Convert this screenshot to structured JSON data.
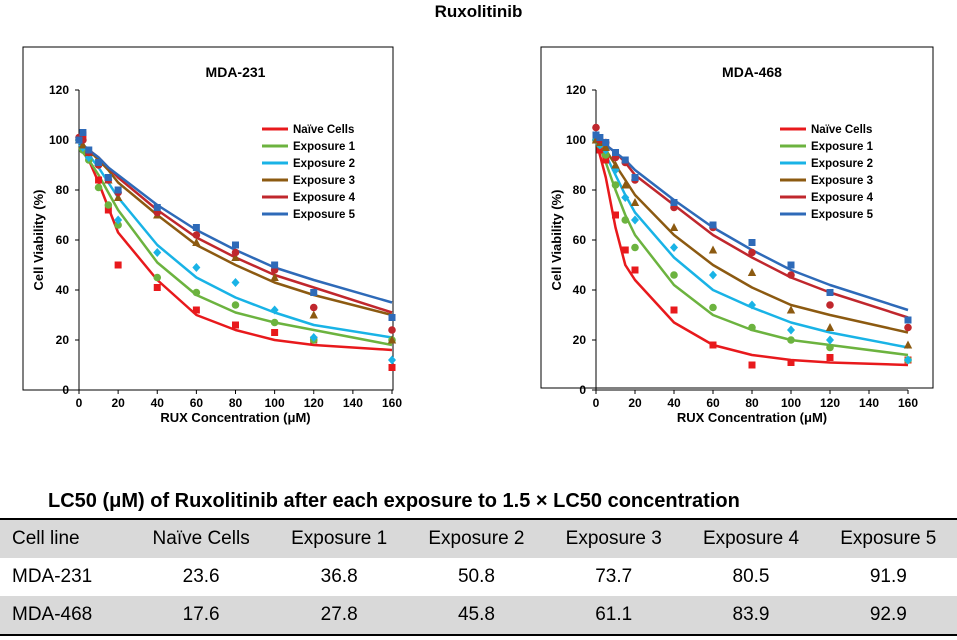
{
  "page_title": "Ruxolitinib",
  "series_colors": [
    "#e8191c",
    "#6cb33f",
    "#19b3e6",
    "#8c5a11",
    "#c0272d",
    "#2e6ab8"
  ],
  "chart_data": [
    {
      "type": "scatter",
      "title": "MDA-231",
      "xlabel": "RUX Concentration (μM)",
      "ylabel": "Cell Viability (%)",
      "xlim": [
        0,
        160
      ],
      "ylim": [
        0,
        120
      ],
      "xticks": [
        "0",
        "20",
        "40",
        "60",
        "80",
        "100",
        "120",
        "140",
        "160"
      ],
      "yticks": [
        "0",
        "20",
        "40",
        "60",
        "80",
        "100",
        "120"
      ],
      "legend": "top-right",
      "series": [
        {
          "name": "Naïve Cells",
          "marker": "square",
          "x": [
            0,
            2,
            5,
            10,
            15,
            20,
            40,
            60,
            80,
            100,
            120,
            160
          ],
          "y": [
            100,
            102,
            94,
            84,
            72,
            50,
            41,
            32,
            26,
            23,
            20,
            9
          ],
          "fit": [
            100,
            97,
            92,
            83,
            73,
            63,
            44,
            30,
            24,
            20,
            18,
            16
          ]
        },
        {
          "name": "Exposure 1",
          "marker": "circle",
          "x": [
            0,
            2,
            5,
            10,
            15,
            20,
            40,
            60,
            80,
            100,
            120,
            160
          ],
          "y": [
            100,
            96,
            92,
            81,
            74,
            66,
            45,
            39,
            34,
            27,
            20,
            20
          ],
          "fit": [
            97,
            95,
            92,
            86,
            79,
            72,
            51,
            38,
            31,
            27,
            24,
            18
          ]
        },
        {
          "name": "Exposure 2",
          "marker": "diamond",
          "x": [
            0,
            2,
            5,
            10,
            15,
            20,
            40,
            60,
            80,
            100,
            120,
            160
          ],
          "y": [
            100,
            97,
            93,
            90,
            84,
            68,
            55,
            49,
            43,
            32,
            21,
            12
          ],
          "fit": [
            98,
            97,
            94,
            89,
            83,
            77,
            58,
            45,
            37,
            31,
            26,
            21
          ]
        },
        {
          "name": "Exposure 3",
          "marker": "triangle",
          "x": [
            0,
            2,
            5,
            10,
            15,
            20,
            40,
            60,
            80,
            100,
            120,
            160
          ],
          "y": [
            100,
            98,
            95,
            91,
            84,
            77,
            70,
            59,
            53,
            45,
            30,
            20
          ],
          "fit": [
            99,
            98,
            96,
            92,
            88,
            83,
            70,
            58,
            50,
            43,
            38,
            30
          ]
        },
        {
          "name": "Exposure 4",
          "marker": "circle",
          "x": [
            0,
            2,
            5,
            10,
            15,
            20,
            40,
            60,
            80,
            100,
            120,
            160
          ],
          "y": [
            101,
            100,
            95,
            90,
            84,
            79,
            71,
            62,
            55,
            48,
            33,
            24
          ],
          "fit": [
            99,
            98,
            96,
            93,
            89,
            85,
            72,
            61,
            53,
            46,
            41,
            31
          ]
        },
        {
          "name": "Exposure 5",
          "marker": "square",
          "x": [
            0,
            2,
            5,
            10,
            15,
            20,
            40,
            60,
            80,
            100,
            120,
            160
          ],
          "y": [
            100,
            103,
            96,
            91,
            85,
            80,
            73,
            65,
            58,
            50,
            39,
            29
          ],
          "fit": [
            99,
            98,
            96,
            93,
            89,
            86,
            74,
            64,
            56,
            49,
            44,
            35
          ]
        }
      ]
    },
    {
      "type": "scatter",
      "title": "MDA-468",
      "xlabel": "RUX Concentration (μM)",
      "ylabel": "Cell Viability (%)",
      "xlim": [
        0,
        160
      ],
      "ylim": [
        0,
        120
      ],
      "xticks": [
        "0",
        "20",
        "40",
        "60",
        "80",
        "100",
        "120",
        "140",
        "160"
      ],
      "yticks": [
        "0",
        "20",
        "40",
        "60",
        "80",
        "100",
        "120"
      ],
      "legend": "top-right",
      "series": [
        {
          "name": "Naïve Cells",
          "marker": "square",
          "x": [
            0,
            2,
            5,
            10,
            15,
            20,
            40,
            60,
            80,
            100,
            120,
            160
          ],
          "y": [
            100,
            96,
            92,
            70,
            56,
            48,
            32,
            18,
            10,
            11,
            13,
            12
          ],
          "fit": [
            100,
            94,
            85,
            65,
            50,
            44,
            27,
            18,
            14,
            12,
            11,
            10
          ]
        },
        {
          "name": "Exposure 1",
          "marker": "circle",
          "x": [
            0,
            2,
            5,
            10,
            15,
            20,
            40,
            60,
            80,
            100,
            120,
            160
          ],
          "y": [
            100,
            98,
            94,
            82,
            68,
            57,
            46,
            33,
            25,
            20,
            17,
            12
          ],
          "fit": [
            99,
            97,
            91,
            80,
            70,
            62,
            42,
            30,
            24,
            20,
            18,
            14
          ]
        },
        {
          "name": "Exposure 2",
          "marker": "diamond",
          "x": [
            0,
            2,
            5,
            10,
            15,
            20,
            40,
            60,
            80,
            100,
            120,
            160
          ],
          "y": [
            100,
            98,
            96,
            88,
            77,
            68,
            57,
            46,
            34,
            24,
            20,
            12
          ],
          "fit": [
            100,
            98,
            94,
            86,
            78,
            71,
            53,
            40,
            33,
            27,
            23,
            17
          ]
        },
        {
          "name": "Exposure 3",
          "marker": "triangle",
          "x": [
            0,
            2,
            5,
            10,
            15,
            20,
            40,
            60,
            80,
            100,
            120,
            160
          ],
          "y": [
            100,
            99,
            97,
            90,
            82,
            75,
            65,
            56,
            47,
            32,
            25,
            18
          ],
          "fit": [
            100,
            99,
            96,
            90,
            84,
            78,
            62,
            50,
            41,
            34,
            30,
            23
          ]
        },
        {
          "name": "Exposure 4",
          "marker": "circle",
          "x": [
            0,
            2,
            5,
            10,
            15,
            20,
            40,
            60,
            80,
            100,
            120,
            160
          ],
          "y": [
            105,
            100,
            99,
            93,
            91,
            84,
            73,
            65,
            55,
            46,
            34,
            25
          ],
          "fit": [
            100,
            99,
            98,
            95,
            91,
            86,
            74,
            62,
            53,
            45,
            39,
            29
          ]
        },
        {
          "name": "Exposure 5",
          "marker": "square",
          "x": [
            0,
            2,
            5,
            10,
            15,
            20,
            40,
            60,
            80,
            100,
            120,
            160
          ],
          "y": [
            102,
            101,
            99,
            95,
            92,
            85,
            75,
            66,
            59,
            50,
            39,
            28
          ],
          "fit": [
            100,
            99,
            98,
            95,
            92,
            88,
            76,
            65,
            56,
            48,
            42,
            32
          ]
        }
      ]
    }
  ],
  "table": {
    "title": "LC50 (μM) of Ruxolitinib after each exposure to 1.5 × LC50 concentration",
    "headers": [
      "Cell line",
      "Naïve Cells",
      "Exposure 1",
      "Exposure 2",
      "Exposure 3",
      "Exposure 4",
      "Exposure 5"
    ],
    "rows": [
      [
        "MDA-231",
        "23.6",
        "36.8",
        "50.8",
        "73.7",
        "80.5",
        "91.9"
      ],
      [
        "MDA-468",
        "17.6",
        "27.8",
        "45.8",
        "61.1",
        "83.9",
        "92.9"
      ]
    ]
  }
}
